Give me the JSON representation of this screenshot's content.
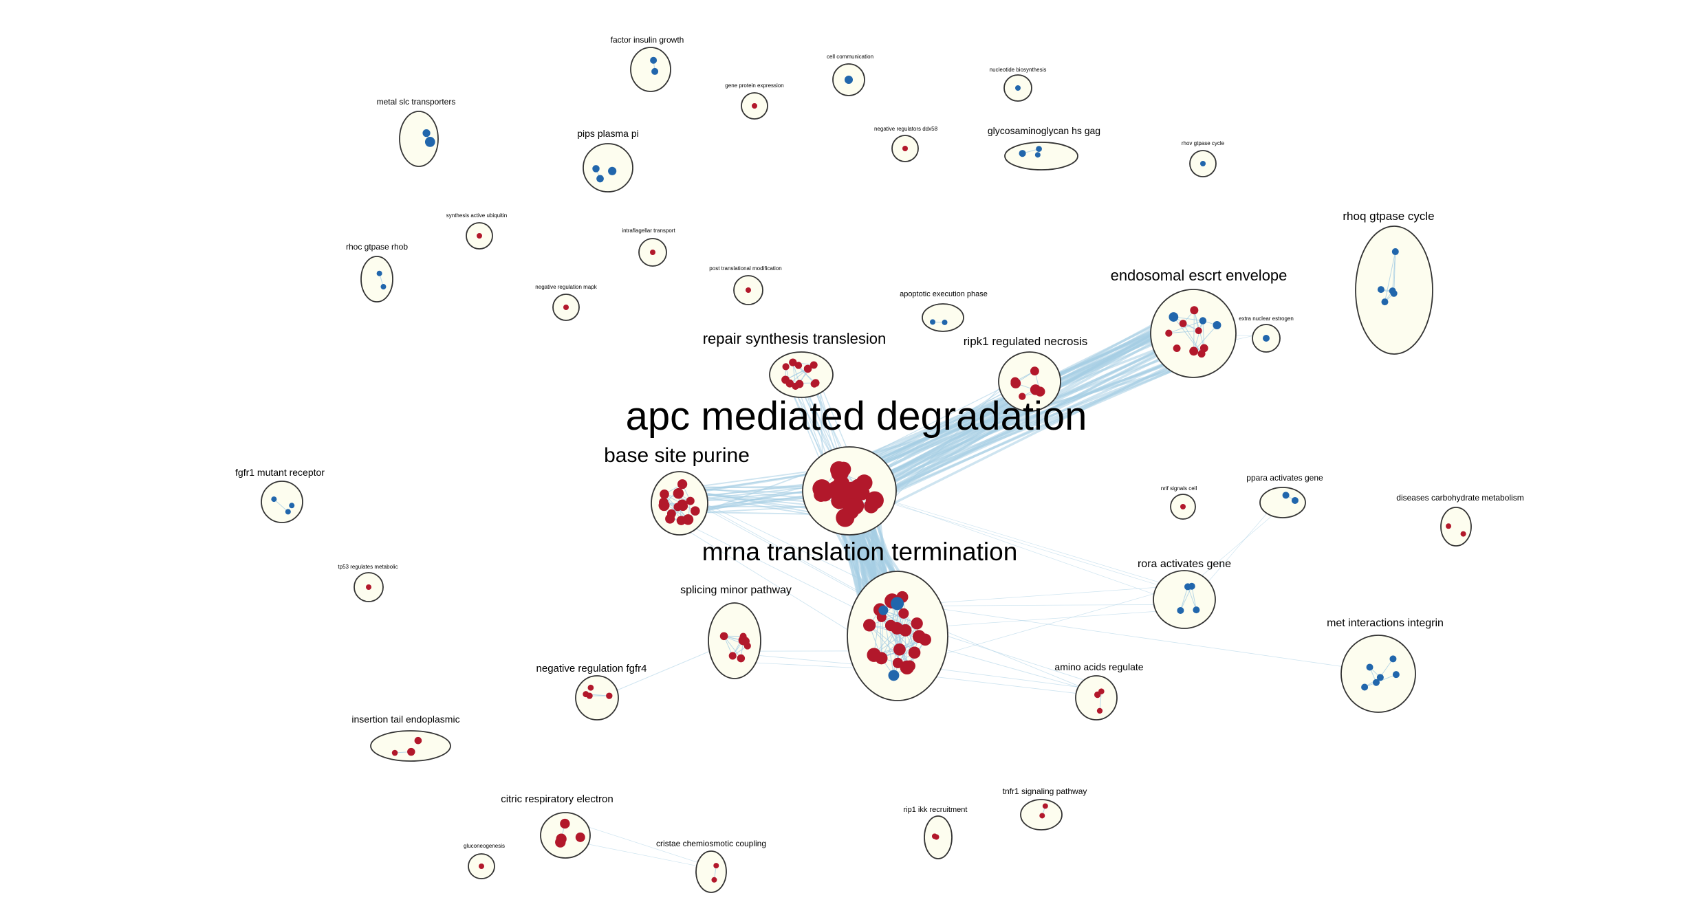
{
  "colors": {
    "upregulated": "#b2182b",
    "downregulated": "#2166ac",
    "cluster_fill": "#fdfdef",
    "cluster_stroke": "#333333",
    "edge": "#a6cde3"
  },
  "clusters": [
    {
      "id": "apc",
      "label": "apc mediated degradation",
      "node_count": 22,
      "color": "up"
    },
    {
      "id": "mrna",
      "label": "mrna translation termination",
      "node_count": 24,
      "color": "mixed"
    },
    {
      "id": "base",
      "label": "base site purine",
      "node_count": 14,
      "color": "up"
    },
    {
      "id": "repair",
      "label": "repair synthesis translesion",
      "node_count": 11,
      "color": "up"
    },
    {
      "id": "endosomal",
      "label": "endosomal escrt envelope",
      "node_count": 11,
      "color": "mixed"
    },
    {
      "id": "ripk1",
      "label": "ripk1 regulated necrosis",
      "node_count": 6,
      "color": "up"
    },
    {
      "id": "rhoq",
      "label": "rhoq gtpase cycle",
      "node_count": 5,
      "color": "down"
    },
    {
      "id": "splicing",
      "label": "splicing minor pathway",
      "node_count": 7,
      "color": "up"
    },
    {
      "id": "met",
      "label": "met interactions integrin",
      "node_count": 6,
      "color": "down"
    },
    {
      "id": "rora",
      "label": "rora activates gene",
      "node_count": 4,
      "color": "down"
    },
    {
      "id": "amino",
      "label": "amino acids regulate",
      "node_count": 3,
      "color": "up"
    },
    {
      "id": "negfgfr4",
      "label": "negative regulation fgfr4",
      "node_count": 4,
      "color": "up"
    },
    {
      "id": "insertion",
      "label": "insertion tail endoplasmic",
      "node_count": 3,
      "color": "up"
    },
    {
      "id": "citric",
      "label": "citric respiratory electron",
      "node_count": 4,
      "color": "up"
    },
    {
      "id": "cristae",
      "label": "cristae chemiosmotic coupling",
      "node_count": 2,
      "color": "up"
    },
    {
      "id": "gluconeo",
      "label": "gluconeogenesis",
      "node_count": 1,
      "color": "up"
    },
    {
      "id": "rip1",
      "label": "rip1 ikk recruitment",
      "node_count": 2,
      "color": "up"
    },
    {
      "id": "tnfr1",
      "label": "tnfr1 signaling pathway",
      "node_count": 2,
      "color": "up"
    },
    {
      "id": "fgfr1",
      "label": "fgfr1 mutant receptor",
      "node_count": 3,
      "color": "down"
    },
    {
      "id": "tp53",
      "label": "tp53 regulates metabolic",
      "node_count": 1,
      "color": "up"
    },
    {
      "id": "metalslc",
      "label": "metal slc transporters",
      "node_count": 2,
      "color": "down"
    },
    {
      "id": "pips",
      "label": "pips plasma pi",
      "node_count": 3,
      "color": "down"
    },
    {
      "id": "factorinsulin",
      "label": "factor insulin growth",
      "node_count": 2,
      "color": "down"
    },
    {
      "id": "geneprotein",
      "label": "gene protein expression",
      "node_count": 1,
      "color": "up"
    },
    {
      "id": "cellcomm",
      "label": "cell communication",
      "node_count": 1,
      "color": "down"
    },
    {
      "id": "nucleotide",
      "label": "nucleotide biosynthesis",
      "node_count": 1,
      "color": "down"
    },
    {
      "id": "negddx58",
      "label": "negative regulators ddx58",
      "node_count": 1,
      "color": "up"
    },
    {
      "id": "glycosamino",
      "label": "glycosaminoglycan hs gag",
      "node_count": 3,
      "color": "down"
    },
    {
      "id": "rhov",
      "label": "rhov gtpase cycle",
      "node_count": 1,
      "color": "down"
    },
    {
      "id": "synthesisub",
      "label": "synthesis active ubiquitin",
      "node_count": 1,
      "color": "up"
    },
    {
      "id": "intraflag",
      "label": "intraflagellar transport",
      "node_count": 1,
      "color": "up"
    },
    {
      "id": "rhoc",
      "label": "rhoc gtpase rhob",
      "node_count": 2,
      "color": "down"
    },
    {
      "id": "negmapk",
      "label": "negative regulation mapk",
      "node_count": 1,
      "color": "up"
    },
    {
      "id": "posttrans",
      "label": "post translational modification",
      "node_count": 1,
      "color": "up"
    },
    {
      "id": "apoptotic",
      "label": "apoptotic execution phase",
      "node_count": 2,
      "color": "down"
    },
    {
      "id": "extranuc",
      "label": "extra nuclear estrogen",
      "node_count": 1,
      "color": "down"
    },
    {
      "id": "nrnf",
      "label": "nrif signals cell",
      "node_count": 1,
      "color": "up"
    },
    {
      "id": "ppara",
      "label": "ppara activates gene",
      "node_count": 2,
      "color": "down"
    },
    {
      "id": "diseasescarb",
      "label": "diseases carbohydrate metabolism",
      "node_count": 2,
      "color": "up"
    }
  ]
}
